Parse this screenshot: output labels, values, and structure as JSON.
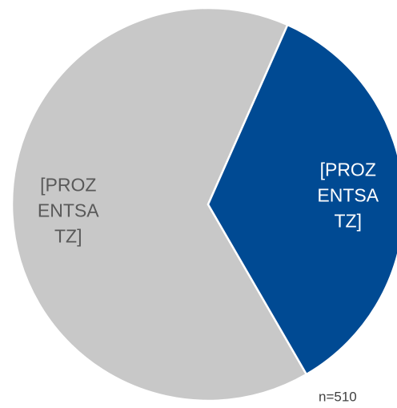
{
  "chart_data": {
    "type": "pie",
    "values": [
      65,
      35
    ],
    "value_labels": [
      "[PROZENTSATZ]",
      "[PROZENTSATZ]"
    ],
    "colors": [
      "#c8c8c8",
      "#004a93"
    ],
    "label_colors": [
      "#595959",
      "#ffffff"
    ],
    "annotation": "n=510"
  }
}
